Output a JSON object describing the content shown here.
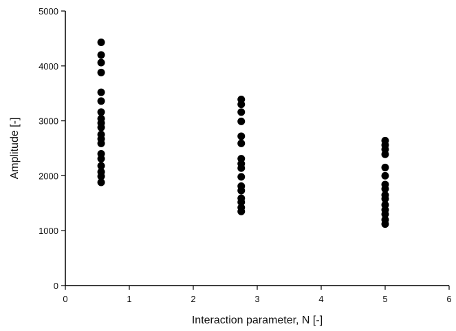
{
  "chart_data": {
    "type": "scatter",
    "title": "",
    "xlabel": "Interaction parameter, N [-]",
    "ylabel": "Amplitude [-]",
    "xlim": [
      0,
      6
    ],
    "ylim": [
      0,
      5000
    ],
    "xticks": [
      "0",
      "1",
      "2",
      "3",
      "4",
      "5",
      "6"
    ],
    "yticks": [
      "0",
      "1000",
      "2000",
      "3000",
      "4000",
      "5000"
    ],
    "grid": false,
    "legend": "none",
    "marker_color": "#000000",
    "series": [
      {
        "points": [
          [
            0.56,
            4430
          ],
          [
            0.56,
            4200
          ],
          [
            0.56,
            4060
          ],
          [
            0.56,
            3880
          ],
          [
            0.56,
            3520
          ],
          [
            0.56,
            3360
          ],
          [
            0.56,
            3160
          ],
          [
            0.56,
            3040
          ],
          [
            0.56,
            2960
          ],
          [
            0.56,
            2880
          ],
          [
            0.56,
            2750
          ],
          [
            0.56,
            2670
          ],
          [
            0.56,
            2590
          ],
          [
            0.56,
            2400
          ],
          [
            0.56,
            2310
          ],
          [
            0.56,
            2180
          ],
          [
            0.56,
            2070
          ],
          [
            0.56,
            1990
          ],
          [
            0.56,
            1880
          ],
          [
            2.75,
            3390
          ],
          [
            2.75,
            3300
          ],
          [
            2.75,
            3160
          ],
          [
            2.75,
            2990
          ],
          [
            2.75,
            2720
          ],
          [
            2.75,
            2590
          ],
          [
            2.75,
            2310
          ],
          [
            2.75,
            2220
          ],
          [
            2.75,
            2140
          ],
          [
            2.75,
            1980
          ],
          [
            2.75,
            1810
          ],
          [
            2.75,
            1730
          ],
          [
            2.75,
            1590
          ],
          [
            2.75,
            1520
          ],
          [
            2.75,
            1420
          ],
          [
            2.75,
            1350
          ],
          [
            5.0,
            2640
          ],
          [
            5.0,
            2560
          ],
          [
            5.0,
            2480
          ],
          [
            5.0,
            2390
          ],
          [
            5.0,
            2150
          ],
          [
            5.0,
            2000
          ],
          [
            5.0,
            1840
          ],
          [
            5.0,
            1760
          ],
          [
            5.0,
            1650
          ],
          [
            5.0,
            1580
          ],
          [
            5.0,
            1470
          ],
          [
            5.0,
            1380
          ],
          [
            5.0,
            1300
          ],
          [
            5.0,
            1200
          ],
          [
            5.0,
            1120
          ]
        ]
      }
    ]
  }
}
